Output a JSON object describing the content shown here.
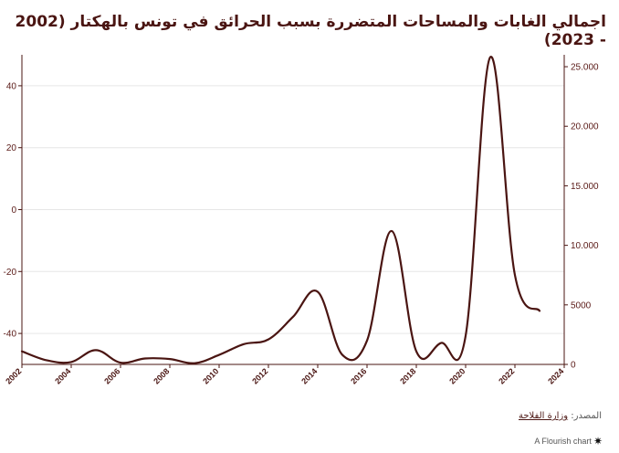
{
  "title": "اجمالي الغابات والمساحات المتضررة بسبب الحرائق في تونس بالهكتار (2002 - 2023)",
  "source": {
    "label": "المصدر:",
    "link_text": "وزارة الفلاحة"
  },
  "credit": {
    "text": "A Flourish chart",
    "icon": "flourish-star-icon"
  },
  "colors": {
    "line": "#4a1512",
    "axis": "#4a1512",
    "grid": "#e6e6e6",
    "text": "#5a1a17"
  },
  "chart_data": {
    "type": "line",
    "title": "اجمالي الغابات والمساحات المتضررة بسبب الحرائق في تونس بالهكتار (2002 - 2023)",
    "xlim": [
      2002,
      2024
    ],
    "x_ticks": [
      "2002",
      "2004",
      "2006",
      "2008",
      "2010",
      "2012",
      "2014",
      "2016",
      "2018",
      "2020",
      "2022",
      "2024"
    ],
    "y_left": {
      "ylim": [
        -50,
        50
      ],
      "ticks": [
        40,
        20,
        0,
        -20,
        -40
      ],
      "tick_labels": [
        "40",
        "20",
        "0",
        "-20",
        "-40"
      ]
    },
    "y_right": {
      "ylim": [
        0,
        26000
      ],
      "ticks": [
        25000,
        20000,
        15000,
        10000,
        5000,
        0
      ],
      "tick_labels": [
        "25.000",
        "20.000",
        "15.000",
        "10.000",
        "5000",
        "0"
      ]
    },
    "grid": true,
    "series": [
      {
        "axis": "right",
        "x": [
          2002,
          2003,
          2004,
          2005,
          2006,
          2007,
          2008,
          2009,
          2010,
          2011,
          2012,
          2013,
          2014,
          2015,
          2016,
          2017,
          2018,
          2019,
          2020,
          2021,
          2022,
          2023
        ],
        "y": [
          1100,
          350,
          200,
          1200,
          150,
          500,
          450,
          100,
          800,
          1700,
          2100,
          4000,
          6100,
          800,
          2000,
          11200,
          1100,
          1800,
          2400,
          25800,
          7500,
          4500
        ]
      }
    ]
  }
}
